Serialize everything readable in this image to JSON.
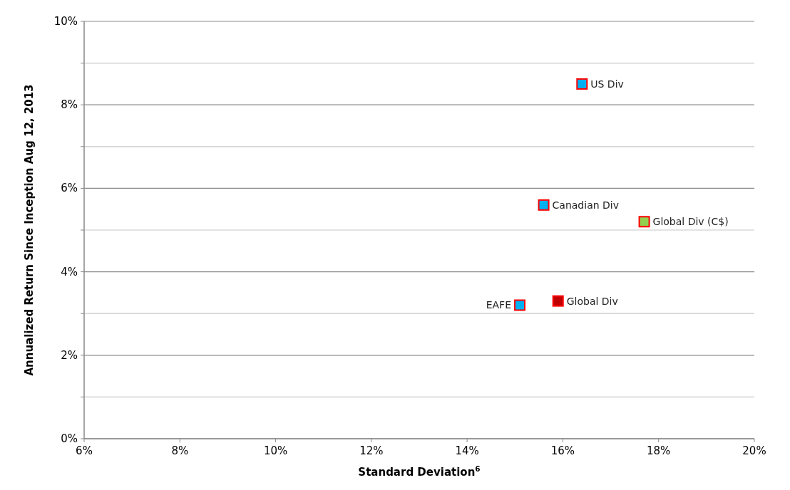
{
  "chart_data": {
    "type": "scatter",
    "xlabel": "Standard Deviation$^{6}$",
    "ylabel": "Annualized Return Since Inception Aug 12, 2013",
    "marker": "square",
    "grid": "y",
    "xlim": [
      6,
      20
    ],
    "xticks": [
      {
        "value": 6,
        "label": "6%"
      },
      {
        "value": 8,
        "label": "8%"
      },
      {
        "value": 10,
        "label": "10%"
      },
      {
        "value": 12,
        "label": "12%"
      },
      {
        "value": 14,
        "label": "14%"
      },
      {
        "value": 16,
        "label": "16%"
      },
      {
        "value": 18,
        "label": "18%"
      },
      {
        "value": 20,
        "label": "20%"
      }
    ],
    "ylim": [
      0,
      10
    ],
    "yticks": [
      {
        "value": 0,
        "label": "0%"
      },
      {
        "value": 1,
        "label": null
      },
      {
        "value": 2,
        "label": "2%"
      },
      {
        "value": 3,
        "label": null
      },
      {
        "value": 4,
        "label": "4%"
      },
      {
        "value": 5,
        "label": null
      },
      {
        "value": 6,
        "label": "6%"
      },
      {
        "value": 7,
        "label": null
      },
      {
        "value": 8,
        "label": "8%"
      },
      {
        "value": 9,
        "label": null
      },
      {
        "value": 10,
        "label": "10%"
      }
    ],
    "series": [
      {
        "name": "US Div",
        "color": "#00b0f0",
        "x": [
          16.4
        ],
        "values": [
          8.5
        ]
      },
      {
        "name": "Canadian Div",
        "color": "#00b0f0",
        "x": [
          15.6
        ],
        "values": [
          5.6
        ]
      },
      {
        "name": "Global Div (C$)",
        "color": "#92d050",
        "x": [
          17.7
        ],
        "values": [
          5.2
        ]
      },
      {
        "name": "EAFE",
        "color": "#00b0f0",
        "x": [
          15.1
        ],
        "values": [
          3.2
        ]
      },
      {
        "name": "Global Div",
        "color": "#c00000",
        "x": [
          15.9
        ],
        "values": [
          3.3
        ]
      }
    ]
  }
}
